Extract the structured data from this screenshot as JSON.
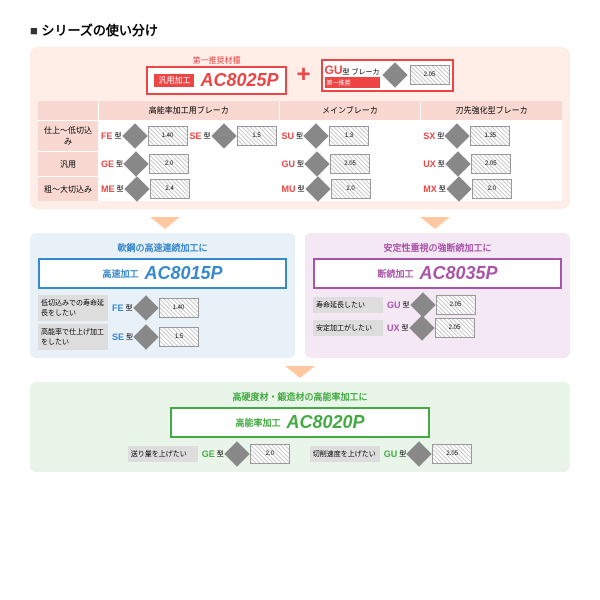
{
  "title": "シリーズの使い分け",
  "top": {
    "rec": "第一推奨材種",
    "lbl": "汎用加工",
    "grade": "AC8025P",
    "color": "#e44",
    "gu": "GU",
    "gu_sup": "型 ブレーカ",
    "gu_sub": "第一推奨"
  },
  "gridH": [
    "",
    "高能率加工用ブレーカ",
    "メインブレーカ",
    "刃先強化型ブレーカ"
  ],
  "gridR": [
    {
      "l": "仕上～低切込み",
      "c": [
        [
          {
            "t": "FE",
            "c": "#e44",
            "d": "1.40"
          },
          {
            "t": "SE",
            "c": "#e44",
            "d": "1.5"
          }
        ],
        [
          {
            "t": "SU",
            "c": "#e44",
            "d": "1.3"
          }
        ],
        [
          {
            "t": "SX",
            "c": "#e44",
            "d": "1.35"
          }
        ]
      ]
    },
    {
      "l": "汎用",
      "c": [
        [
          {
            "t": "GE",
            "c": "#e44",
            "d": "2.0"
          }
        ],
        [
          {
            "t": "GU",
            "c": "#e44",
            "d": "2.05"
          }
        ],
        [
          {
            "t": "UX",
            "c": "#e44",
            "d": "2.05"
          }
        ]
      ]
    },
    {
      "l": "粗～大切込み",
      "c": [
        [
          {
            "t": "ME",
            "c": "#e44",
            "d": "2.4"
          }
        ],
        [
          {
            "t": "MU",
            "c": "#e44",
            "d": "2.0"
          }
        ],
        [
          {
            "t": "MX",
            "c": "#e44",
            "d": "2.0"
          }
        ]
      ]
    }
  ],
  "secs": [
    {
      "bg": "sec-b",
      "bc": "#3888cc",
      "t": "軟鋼の高速連続加工に",
      "lbl": "高速加工",
      "grade": "AC8015P",
      "rows": [
        {
          "l": "低切込みでの寿命延長をしたい",
          "ct": "FE",
          "d": "1.40"
        },
        {
          "l": "高能率で仕上げ加工をしたい",
          "ct": "SE",
          "d": "1.5"
        }
      ]
    },
    {
      "bg": "sec-p",
      "bc": "#a855a8",
      "t": "安定性重視の強断続加工に",
      "lbl": "断続加工",
      "grade": "AC8035P",
      "rows": [
        {
          "l": "寿命延長したい",
          "ct": "GU",
          "d": "2.05"
        },
        {
          "l": "安定加工がしたい",
          "ct": "UX",
          "d": "2.05"
        }
      ]
    }
  ],
  "sec3": {
    "bg": "sec-g",
    "bc": "#44aa44",
    "t": "高硬度材・鍛造材の高能率加工に",
    "lbl": "高能率加工",
    "grade": "AC8020P",
    "rows": [
      {
        "l": "送り量を上げたい",
        "ct": "GE",
        "d": "2.0"
      },
      {
        "l": "切削速度を上げたい",
        "ct": "GU",
        "d": "2.05"
      }
    ]
  },
  "arrC": [
    "#ffc8a0",
    "#ffc8a0",
    "#ffc8a0"
  ]
}
